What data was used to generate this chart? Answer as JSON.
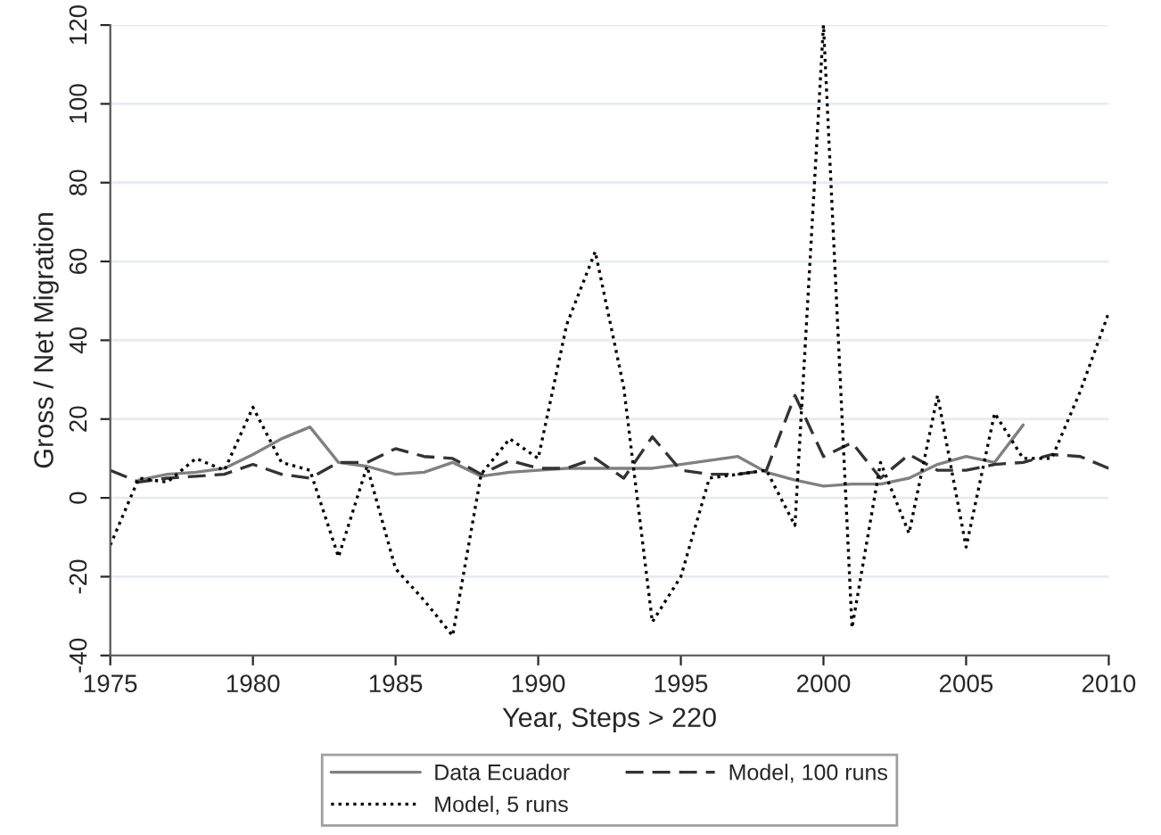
{
  "chart_data": {
    "type": "line",
    "xlabel": "Year, Steps > 220",
    "ylabel": "Gross / Net Migration",
    "xlim": [
      1975,
      2010
    ],
    "xticks": [
      1975,
      1980,
      1985,
      1990,
      1995,
      2000,
      2005,
      2010
    ],
    "ylim": [
      -40,
      120
    ],
    "yticks": [
      -40,
      -20,
      0,
      20,
      40,
      60,
      80,
      100,
      120
    ],
    "grid": "y",
    "legend": "bottom",
    "series": [
      {
        "name": "Data Ecuador",
        "color": "#808080",
        "line_style": "solid",
        "x": [
          1976,
          1977,
          1978,
          1979,
          1980,
          1981,
          1982,
          1983,
          1984,
          1985,
          1986,
          1987,
          1988,
          1989,
          1990,
          1991,
          1992,
          1993,
          1994,
          1995,
          1996,
          1997,
          1998,
          1999,
          2000,
          2001,
          2002,
          2003,
          2004,
          2005,
          2006,
          2007
        ],
        "values": [
          4.5,
          6,
          6.5,
          7.5,
          11,
          15,
          18,
          9,
          8,
          6,
          6.5,
          9,
          5.5,
          6.5,
          7,
          7.5,
          7.5,
          7.5,
          7.5,
          8.5,
          9.5,
          10.5,
          6.5,
          4.5,
          3,
          3.5,
          3.5,
          5,
          8.5,
          10.5,
          9,
          18.5
        ]
      },
      {
        "name": "Model, 100 runs",
        "color": "#333333",
        "line_style": "dashed",
        "x": [
          1975,
          1976,
          1977,
          1978,
          1979,
          1980,
          1981,
          1982,
          1983,
          1984,
          1985,
          1986,
          1987,
          1988,
          1989,
          1990,
          1991,
          1992,
          1993,
          1994,
          1995,
          1996,
          1997,
          1998,
          1999,
          2000,
          2001,
          2002,
          2003,
          2004,
          2005,
          2006,
          2007,
          2008,
          2009,
          2010
        ],
        "values": [
          7,
          4,
          5,
          5.5,
          6,
          8.5,
          6,
          5,
          9,
          9,
          12.5,
          10.5,
          10,
          6,
          9.5,
          7.5,
          7.5,
          10,
          5,
          15.5,
          7,
          6,
          6,
          7,
          26,
          10.5,
          14,
          5,
          11,
          7,
          7,
          8.5,
          9,
          11,
          10.5,
          7.5
        ]
      },
      {
        "name": "Model, 5 runs",
        "color": "#000000",
        "line_style": "dotted",
        "x": [
          1975,
          1976,
          1977,
          1978,
          1979,
          1980,
          1981,
          1982,
          1983,
          1984,
          1985,
          1986,
          1987,
          1988,
          1989,
          1990,
          1991,
          1992,
          1993,
          1994,
          1995,
          1996,
          1997,
          1998,
          1999,
          2000,
          2001,
          2002,
          2003,
          2004,
          2005,
          2006,
          2007,
          2008,
          2009,
          2010
        ],
        "values": [
          -12,
          5,
          4,
          10,
          7,
          23,
          9,
          7,
          -15,
          8,
          -18,
          -26,
          -35,
          6,
          15,
          10,
          44,
          62.5,
          28,
          -31.5,
          -20,
          5,
          6,
          7,
          -7,
          120,
          -33,
          9,
          -9,
          26,
          -12.5,
          21.5,
          10,
          10,
          27,
          47
        ]
      }
    ]
  }
}
